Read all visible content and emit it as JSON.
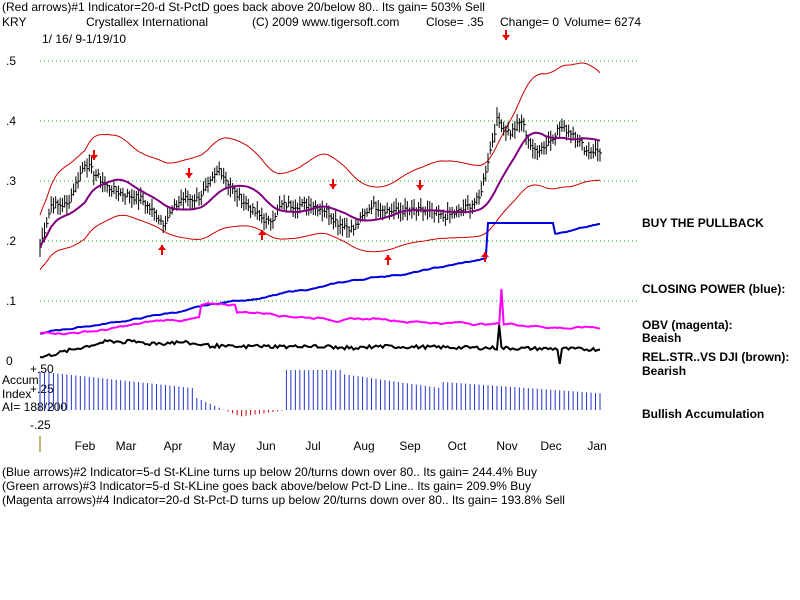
{
  "header": {
    "line1": "(Red arrows)#1 Indicator=20-d St-PctD goes back above 20/below 80.. Its gain= 503% Sell",
    "symbol": "KRY",
    "company": "Crystallex International",
    "copyright": "(C) 2009 www.tigersoft.com",
    "close": "Close=  .35",
    "change": "Change= 0",
    "volume": "Volume=  6274",
    "dates": "1/ 16/ 9-1/19/10"
  },
  "side_labels": {
    "buy_pullback": "BUY THE PULLBACK",
    "closing_power": "CLOSING POWER (blue):",
    "obv": "OBV (magenta):",
    "obv_state": "Beaish",
    "relstr": "REL.STR..VS DJI (brown):",
    "relstr_state": "Bearish",
    "accum_state": "Bullish Accumulation"
  },
  "accum_labels": {
    "title1": "Accum",
    "title2": "Index",
    "ai": "AI= 188/200",
    "p50": "+.50",
    "p25": "+.25",
    "m25": "-.25"
  },
  "footer": {
    "line1": "(Blue arrows)#2 Indicator=5-d St-KLine turns up below 20/turns down over 80.. Its gain= 244.4% Buy",
    "line2": "(Green arrows)#3 Indicator=5-d St-KLine goes back above/below Pct-D Line.. Its gain= 209.9% Buy",
    "line3": "(Magenta arrows)#4 Indicator=20-d St-Pct-D turns up below 20/turns down over 80.. Its gain= 193.8% Sell"
  },
  "colors": {
    "price": "#000000",
    "bands": "#cc0000",
    "ma": "#800080",
    "closing_power": "#0000dd",
    "obv": "#ff00ff",
    "relstr": "#000000",
    "accum": "#2233cc",
    "accum_neg": "#cc0000",
    "grid": "#00aa00",
    "arrows": "#ee0000"
  },
  "chart_data": {
    "type": "line",
    "y_ticks": [
      ".5",
      ".4",
      ".3",
      ".2",
      ".1",
      "0"
    ],
    "y_values": [
      0.5,
      0.4,
      0.3,
      0.2,
      0.1,
      0
    ],
    "ylim": [
      0,
      0.52
    ],
    "x_ticks": [
      "Feb",
      "Mar",
      "Apr",
      "May",
      "Jun",
      "Jul",
      "Aug",
      "Sep",
      "Oct",
      "Nov",
      "Dec",
      "Jan"
    ],
    "grid": true,
    "price_series": {
      "x": [
        0,
        5,
        12,
        20,
        30,
        36,
        45,
        55,
        63,
        70,
        75,
        80,
        87,
        95,
        102,
        108,
        115,
        122,
        128,
        133,
        140,
        148,
        156,
        163,
        172,
        180,
        188,
        196,
        204,
        210,
        215,
        220,
        226,
        232,
        238,
        244,
        250
      ],
      "close": [
        0.19,
        0.26,
        0.26,
        0.33,
        0.29,
        0.28,
        0.27,
        0.23,
        0.27,
        0.27,
        0.29,
        0.32,
        0.28,
        0.25,
        0.23,
        0.26,
        0.26,
        0.26,
        0.25,
        0.23,
        0.22,
        0.26,
        0.25,
        0.25,
        0.25,
        0.24,
        0.25,
        0.27,
        0.4,
        0.38,
        0.4,
        0.35,
        0.36,
        0.39,
        0.38,
        0.35,
        0.35
      ]
    },
    "annotations": {
      "red_down_arrows": [
        "Feb",
        "May",
        "Jul",
        "Sep",
        "Nov"
      ],
      "red_up_arrows": [
        "Apr",
        "Jun",
        "Aug",
        "Oct"
      ]
    }
  }
}
